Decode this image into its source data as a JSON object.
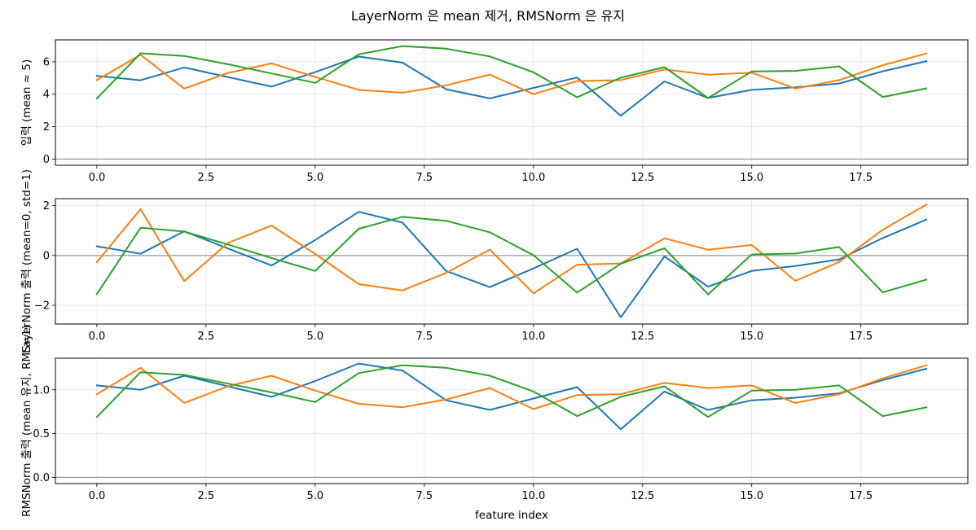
{
  "figure": {
    "title": "LayerNorm 은 mean 제거, RMSNorm 은 유지"
  },
  "chart_data": [
    {
      "type": "line",
      "title": "",
      "xlabel": "",
      "ylabel": "입력 (mean ≈ 5)",
      "x": [
        0,
        1,
        2,
        3,
        4,
        5,
        6,
        7,
        8,
        9,
        10,
        11,
        12,
        13,
        14,
        15,
        16,
        17,
        18,
        19
      ],
      "xlim": [
        -0.95,
        19.95
      ],
      "ylim": [
        -0.38,
        7.35
      ],
      "xticks": [
        0.0,
        2.5,
        5.0,
        7.5,
        10.0,
        12.5,
        15.0,
        17.5
      ],
      "xtick_labels": [
        "0.0",
        "2.5",
        "5.0",
        "7.5",
        "10.0",
        "12.5",
        "15.0",
        "17.5"
      ],
      "yticks": [
        0,
        2,
        4,
        6
      ],
      "ytick_labels": [
        "0",
        "2",
        "4",
        "6"
      ],
      "hline": 0,
      "grid": true,
      "series": [
        {
          "color": "#1f77b4",
          "values": [
            5.13,
            4.86,
            5.65,
            5.06,
            4.47,
            5.36,
            6.32,
            5.95,
            4.31,
            3.74,
            4.39,
            5.03,
            2.67,
            4.79,
            3.77,
            4.27,
            4.43,
            4.66,
            5.41,
            6.04
          ]
        },
        {
          "color": "#ff7f0e",
          "values": [
            4.87,
            6.43,
            4.35,
            5.31,
            5.9,
            5.07,
            4.27,
            4.09,
            4.55,
            5.21,
            4.0,
            4.81,
            4.87,
            5.53,
            5.2,
            5.33,
            4.35,
            4.87,
            5.79,
            6.51
          ]
        },
        {
          "color": "#2ca02c",
          "values": [
            3.74,
            6.52,
            6.36,
            5.85,
            5.28,
            4.7,
            6.46,
            6.97,
            6.81,
            6.33,
            5.35,
            3.81,
            5.02,
            5.67,
            3.76,
            5.4,
            5.44,
            5.72,
            3.83,
            4.36
          ]
        }
      ]
    },
    {
      "type": "line",
      "title": "",
      "xlabel": "",
      "ylabel": "LayerNorm 출력 (mean=0, std=1)",
      "x": [
        0,
        1,
        2,
        3,
        4,
        5,
        6,
        7,
        8,
        9,
        10,
        11,
        12,
        13,
        14,
        15,
        16,
        17,
        18,
        19
      ],
      "xlim": [
        -0.95,
        19.95
      ],
      "ylim": [
        -2.75,
        2.28
      ],
      "xticks": [
        0.0,
        2.5,
        5.0,
        7.5,
        10.0,
        12.5,
        15.0,
        17.5
      ],
      "xtick_labels": [
        "0.0",
        "2.5",
        "5.0",
        "7.5",
        "10.0",
        "12.5",
        "15.0",
        "17.5"
      ],
      "yticks": [
        -2,
        0,
        2
      ],
      "ytick_labels": [
        "−2",
        "0",
        "2"
      ],
      "hline": 0,
      "grid": true,
      "series": [
        {
          "color": "#1f77b4",
          "values": [
            0.37,
            0.07,
            0.97,
            0.28,
            -0.4,
            0.62,
            1.75,
            1.32,
            -0.62,
            -1.27,
            -0.52,
            0.27,
            -2.48,
            -0.04,
            -1.25,
            -0.62,
            -0.42,
            -0.16,
            0.7,
            1.44
          ]
        },
        {
          "color": "#ff7f0e",
          "values": [
            -0.26,
            1.86,
            -1.03,
            0.5,
            1.2,
            0.06,
            -1.15,
            -1.4,
            -0.7,
            0.24,
            -1.52,
            -0.37,
            -0.32,
            0.69,
            0.23,
            0.42,
            -1.02,
            -0.26,
            1.03,
            2.04
          ]
        },
        {
          "color": "#2ca02c",
          "values": [
            -1.55,
            1.11,
            0.96,
            0.44,
            -0.1,
            -0.62,
            1.07,
            1.55,
            1.39,
            0.93,
            0.01,
            -1.49,
            -0.33,
            0.29,
            -1.56,
            0.04,
            0.08,
            0.34,
            -1.48,
            -0.97
          ]
        }
      ]
    },
    {
      "type": "line",
      "title": "",
      "xlabel": "feature index",
      "ylabel": "RMSNorm 출력 (mean 유지, RMS=1)",
      "x": [
        0,
        1,
        2,
        3,
        4,
        5,
        6,
        7,
        8,
        9,
        10,
        11,
        12,
        13,
        14,
        15,
        16,
        17,
        18,
        19
      ],
      "xlim": [
        -0.95,
        19.95
      ],
      "ylim": [
        -0.07,
        1.36
      ],
      "xticks": [
        0.0,
        2.5,
        5.0,
        7.5,
        10.0,
        12.5,
        15.0,
        17.5
      ],
      "xtick_labels": [
        "0.0",
        "2.5",
        "5.0",
        "7.5",
        "10.0",
        "12.5",
        "15.0",
        "17.5"
      ],
      "yticks": [
        0.0,
        0.5,
        1.0
      ],
      "ytick_labels": [
        "0.0",
        "0.5",
        "1.0"
      ],
      "hline": 0,
      "grid": true,
      "series": [
        {
          "color": "#1f77b4",
          "values": [
            1.05,
            1.0,
            1.16,
            1.04,
            0.92,
            1.1,
            1.3,
            1.22,
            0.88,
            0.77,
            0.9,
            1.03,
            0.55,
            0.98,
            0.77,
            0.88,
            0.91,
            0.96,
            1.11,
            1.24
          ]
        },
        {
          "color": "#ff7f0e",
          "values": [
            0.95,
            1.25,
            0.85,
            1.04,
            1.16,
            0.99,
            0.84,
            0.8,
            0.89,
            1.02,
            0.78,
            0.94,
            0.95,
            1.08,
            1.02,
            1.05,
            0.85,
            0.95,
            1.13,
            1.28
          ]
        },
        {
          "color": "#2ca02c",
          "values": [
            0.69,
            1.2,
            1.17,
            1.07,
            0.97,
            0.86,
            1.19,
            1.28,
            1.25,
            1.16,
            0.98,
            0.7,
            0.92,
            1.04,
            0.69,
            0.99,
            1.0,
            1.05,
            0.7,
            0.8
          ]
        }
      ]
    }
  ]
}
